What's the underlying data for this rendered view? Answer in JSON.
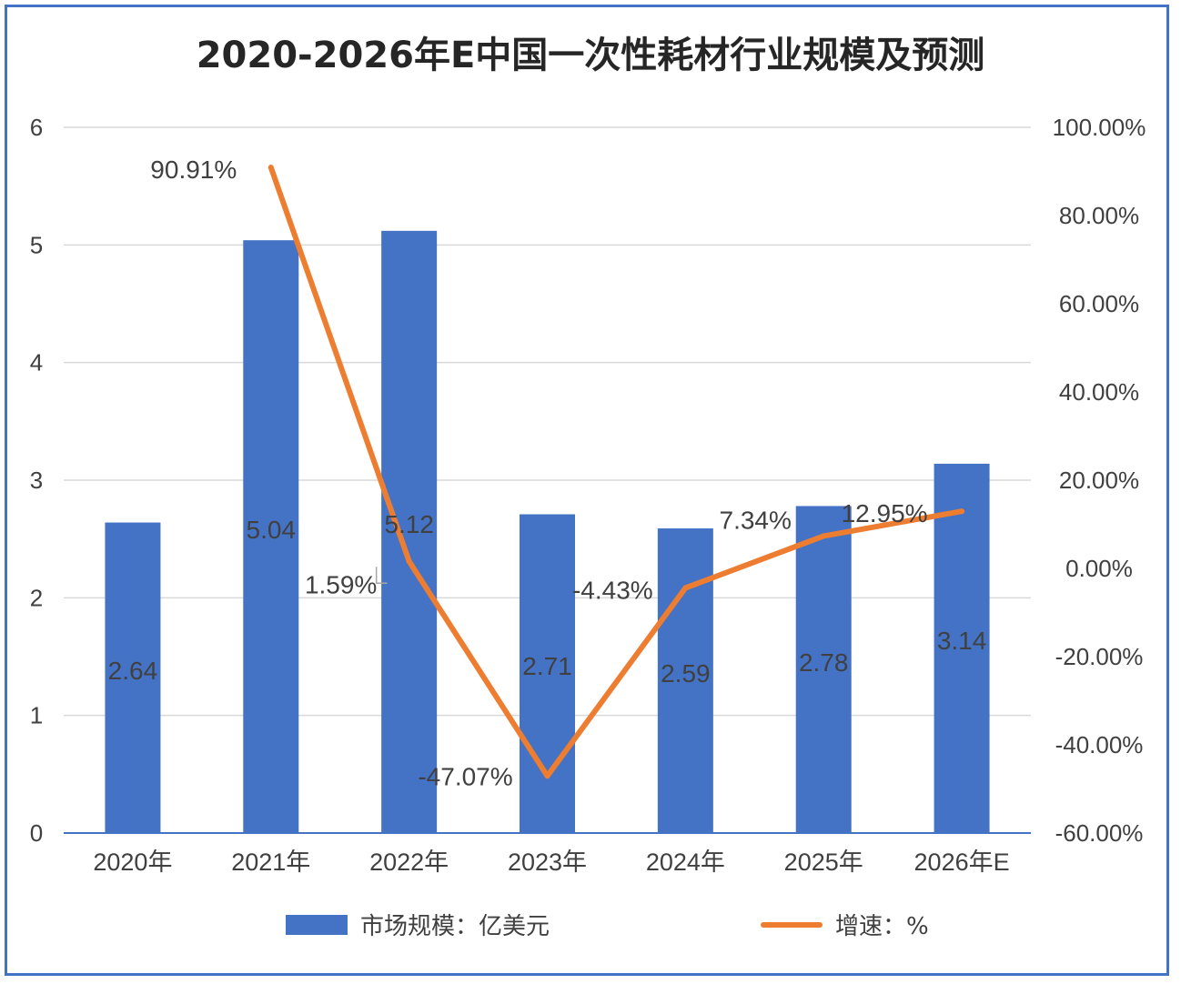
{
  "title": "2020-2026年E中国一次性耗材行业规模及预测",
  "colors": {
    "bar": "#4472C4",
    "line": "#ED7D31",
    "grid": "#D9D9D9",
    "text": "#404040",
    "frame": "#4472C4"
  },
  "legend": {
    "bar_label": "市场规模：亿美元",
    "line_label": "增速：%"
  },
  "chart_data": {
    "type": "bar",
    "categories": [
      "2020年",
      "2021年",
      "2022年",
      "2023年",
      "2024年",
      "2025年",
      "2026年E"
    ],
    "series": [
      {
        "name": "市场规模：亿美元",
        "type": "bar",
        "axis": "left",
        "values": [
          2.64,
          5.04,
          5.12,
          2.71,
          2.59,
          2.78,
          3.14
        ],
        "labels": [
          "2.64",
          "5.04",
          "5.12",
          "2.71",
          "2.59",
          "2.78",
          "3.14"
        ]
      },
      {
        "name": "增速：%",
        "type": "line",
        "axis": "right",
        "values": [
          null,
          90.91,
          1.59,
          -47.07,
          -4.43,
          7.34,
          12.95
        ],
        "labels": [
          "",
          "90.91%",
          "1.59%",
          "-47.07%",
          "-4.43%",
          "7.34%",
          "12.95%"
        ]
      }
    ],
    "y_left": {
      "min": 0,
      "max": 6,
      "ticks": [
        "0",
        "1",
        "2",
        "3",
        "4",
        "5",
        "6"
      ]
    },
    "y_right": {
      "min": -60,
      "max": 100,
      "ticks": [
        "-60.00%",
        "-40.00%",
        "-20.00%",
        "0.00%",
        "20.00%",
        "40.00%",
        "60.00%",
        "80.00%",
        "100.00%"
      ]
    },
    "grid": true,
    "legend_position": "bottom"
  }
}
